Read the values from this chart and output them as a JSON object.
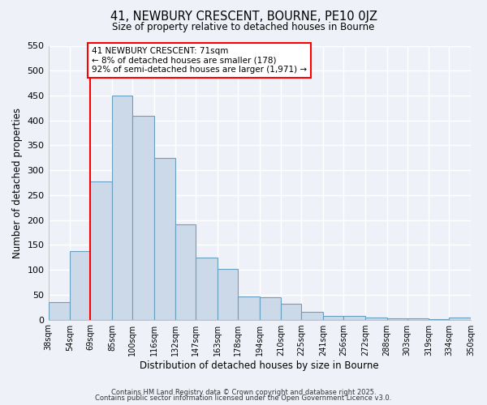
{
  "title": "41, NEWBURY CRESCENT, BOURNE, PE10 0JZ",
  "subtitle": "Size of property relative to detached houses in Bourne",
  "xlabel": "Distribution of detached houses by size in Bourne",
  "ylabel": "Number of detached properties",
  "bar_values": [
    35,
    138,
    278,
    450,
    410,
    325,
    192,
    125,
    101,
    47,
    45,
    32,
    15,
    8,
    8,
    5,
    3,
    2,
    1,
    4
  ],
  "bin_edges": [
    38,
    54,
    69,
    85,
    100,
    116,
    132,
    147,
    163,
    178,
    194,
    210,
    225,
    241,
    256,
    272,
    288,
    303,
    319,
    334,
    350
  ],
  "tick_labels": [
    "38sqm",
    "54sqm",
    "69sqm",
    "85sqm",
    "100sqm",
    "116sqm",
    "132sqm",
    "147sqm",
    "163sqm",
    "178sqm",
    "194sqm",
    "210sqm",
    "225sqm",
    "241sqm",
    "256sqm",
    "272sqm",
    "288sqm",
    "303sqm",
    "319sqm",
    "334sqm",
    "350sqm"
  ],
  "bar_color": "#ccd9e8",
  "bar_edge_color": "#6a9fc0",
  "vline_x": 69,
  "vline_color": "red",
  "annotation_text": "41 NEWBURY CRESCENT: 71sqm\n← 8% of detached houses are smaller (178)\n92% of semi-detached houses are larger (1,971) →",
  "annotation_box_color": "white",
  "annotation_box_edge": "red",
  "ylim": [
    0,
    550
  ],
  "yticks": [
    0,
    50,
    100,
    150,
    200,
    250,
    300,
    350,
    400,
    450,
    500,
    550
  ],
  "footer1": "Contains HM Land Registry data © Crown copyright and database right 2025.",
  "footer2": "Contains public sector information licensed under the Open Government Licence v3.0.",
  "bg_color": "#eef2f8",
  "grid_color": "#ffffff",
  "figsize": [
    6.0,
    5.0
  ],
  "dpi": 100
}
